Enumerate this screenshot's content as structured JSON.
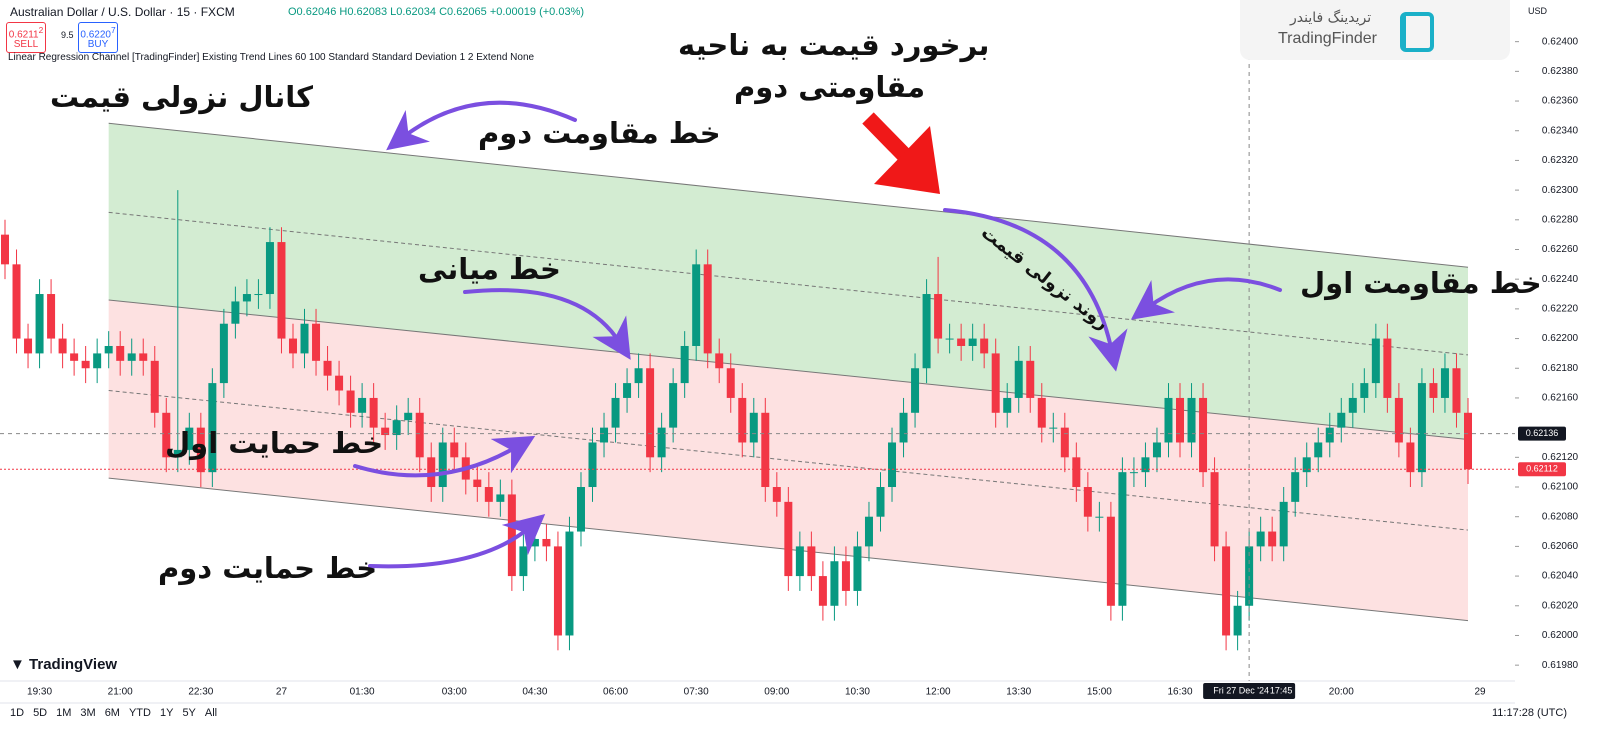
{
  "chart_data": {
    "type": "candlestick",
    "header": {
      "symbol": "Australian Dollar / U.S. Dollar · 15 · FXCM",
      "ohlc": "O0.62046 H0.62083 L0.62034 C0.62065 +0.00019 (+0.03%)",
      "sell_price": "0.6211",
      "sell_sup": "2",
      "sell": "SELL",
      "spread": "9.5",
      "buy_price": "0.6220",
      "buy_sup": "7",
      "buy": "BUY",
      "indicator": "Linear Regression Channel [TradingFinder] Existing Trend Lines 60 100 Standard Standard Deviation 1 2 Extend None"
    },
    "brand": {
      "persian": "تریدینگ فایندر",
      "latin": "TradingFinder"
    },
    "currency": "USD",
    "annotations": [
      "کانال نزولی قیمت",
      "خط مقاومت دوم",
      "برخورد قیمت به ناحیه",
      "مقاومتی دوم",
      "روند نزولی قیمت",
      "خط میانی",
      "خط مقاومت اول",
      "خط حمایت اول",
      "خط حمایت دوم"
    ],
    "footer": {
      "logo": "TradingView",
      "ranges": [
        "1D",
        "5D",
        "1M",
        "3M",
        "6M",
        "YTD",
        "1Y",
        "5Y",
        "All"
      ],
      "clock": "11:17:28 (UTC)"
    },
    "categories": [
      null,
      null,
      null,
      "19:30",
      null,
      null,
      null,
      null,
      null,
      null,
      "21:00",
      null,
      null,
      null,
      null,
      null,
      null,
      "22:30",
      null,
      null,
      null,
      null,
      null,
      null,
      "27",
      null,
      null,
      null,
      null,
      null,
      null,
      "01:30",
      null,
      null,
      null,
      null,
      null,
      null,
      null,
      "03:00",
      null,
      null,
      null,
      null,
      null,
      null,
      "04:30",
      null,
      null,
      null,
      null,
      null,
      null,
      "06:00",
      null,
      null,
      null,
      null,
      null,
      null,
      "07:30",
      null,
      null,
      null,
      null,
      null,
      null,
      "09:00",
      null,
      null,
      null,
      null,
      null,
      null,
      "10:30",
      null,
      null,
      null,
      null,
      null,
      null,
      "12:00",
      null,
      null,
      null,
      null,
      null,
      null,
      "13:30",
      null,
      null,
      null,
      null,
      null,
      null,
      "15:00",
      null,
      null,
      null,
      null,
      null,
      null,
      "16:30",
      null,
      null,
      null,
      null,
      null,
      null,
      null,
      null,
      null,
      null,
      null,
      null,
      null,
      "20:00",
      null,
      null,
      null,
      null,
      null,
      null,
      null,
      null,
      null,
      null,
      null
    ],
    "x_end_label": "29",
    "open": [
      0.6227,
      0.6225,
      0.622,
      0.6219,
      0.6223,
      0.622,
      0.6219,
      0.62185,
      0.6218,
      0.6219,
      0.62195,
      0.62185,
      0.6219,
      0.62185,
      0.6215,
      0.6212,
      0.62125,
      0.6214,
      0.6211,
      0.6217,
      0.6221,
      0.62225,
      0.6223,
      0.6223,
      0.62265,
      0.622,
      0.6219,
      0.6221,
      0.62185,
      0.62175,
      0.62165,
      0.6215,
      0.6216,
      0.6214,
      0.62135,
      0.62145,
      0.6215,
      0.6212,
      0.621,
      0.6213,
      0.6212,
      0.62105,
      0.621,
      0.6209,
      0.62095,
      0.6204,
      0.6206,
      0.62065,
      0.6206,
      0.62,
      0.6207,
      0.621,
      0.6213,
      0.6214,
      0.6216,
      0.6217,
      0.6218,
      0.6212,
      0.6214,
      0.6217,
      0.62195,
      0.6225,
      0.6219,
      0.6218,
      0.6216,
      0.6213,
      0.6215,
      0.621,
      0.6209,
      0.6204,
      0.6206,
      0.6204,
      0.6202,
      0.6205,
      0.6203,
      0.6206,
      0.6208,
      0.621,
      0.6213,
      0.6215,
      0.6218,
      0.6223,
      0.622,
      0.622,
      0.62195,
      0.622,
      0.6219,
      0.6215,
      0.6216,
      0.62185,
      0.6216,
      0.6214,
      0.6214,
      0.6212,
      0.621,
      0.6208,
      0.6208,
      0.6202,
      0.6211,
      0.6211,
      0.6212,
      0.6213,
      0.6216,
      0.6213,
      0.6216,
      0.6211,
      0.6206,
      0.62,
      0.6202,
      0.6206,
      0.6207,
      0.6206,
      0.6209,
      0.6211,
      0.6212,
      0.6213,
      0.6214,
      0.6215,
      0.6216,
      0.6217,
      0.622,
      0.6216,
      0.6213,
      0.6211,
      0.6217,
      0.6216,
      0.6218,
      0.6215
    ],
    "high": [
      0.6228,
      0.6226,
      0.6221,
      0.6224,
      0.6224,
      0.6221,
      0.622,
      0.62195,
      0.622,
      0.62205,
      0.62205,
      0.622,
      0.622,
      0.62195,
      0.6216,
      0.623,
      0.6215,
      0.6215,
      0.6218,
      0.6222,
      0.62235,
      0.6224,
      0.6224,
      0.62275,
      0.62275,
      0.6221,
      0.6222,
      0.6222,
      0.62195,
      0.62185,
      0.62175,
      0.6217,
      0.6217,
      0.6215,
      0.62155,
      0.6216,
      0.6216,
      0.6213,
      0.6214,
      0.6214,
      0.6213,
      0.62115,
      0.6211,
      0.62105,
      0.62105,
      0.6207,
      0.62075,
      0.62075,
      0.6207,
      0.6208,
      0.6211,
      0.6214,
      0.6215,
      0.6217,
      0.6218,
      0.6219,
      0.6219,
      0.6215,
      0.6218,
      0.62205,
      0.6226,
      0.6226,
      0.622,
      0.6219,
      0.6217,
      0.6216,
      0.6216,
      0.6211,
      0.621,
      0.6207,
      0.6207,
      0.6205,
      0.6206,
      0.6206,
      0.6207,
      0.6209,
      0.6211,
      0.6214,
      0.6216,
      0.6219,
      0.6224,
      0.62255,
      0.6221,
      0.6221,
      0.6221,
      0.6221,
      0.622,
      0.6217,
      0.62195,
      0.62195,
      0.6217,
      0.6215,
      0.6215,
      0.6213,
      0.6211,
      0.6209,
      0.6209,
      0.6212,
      0.6212,
      0.6213,
      0.6214,
      0.6217,
      0.6217,
      0.6217,
      0.6217,
      0.6212,
      0.6207,
      0.6203,
      0.6207,
      0.6208,
      0.6208,
      0.621,
      0.6212,
      0.6213,
      0.6214,
      0.6215,
      0.6216,
      0.6217,
      0.6218,
      0.6221,
      0.6221,
      0.6217,
      0.6214,
      0.6218,
      0.6218,
      0.6219,
      0.6219,
      0.6216
    ],
    "low": [
      0.6224,
      0.6219,
      0.6218,
      0.6218,
      0.6219,
      0.6218,
      0.62175,
      0.6217,
      0.6217,
      0.6218,
      0.62175,
      0.62175,
      0.62175,
      0.6214,
      0.6211,
      0.6211,
      0.62115,
      0.621,
      0.621,
      0.6216,
      0.622,
      0.62215,
      0.6222,
      0.6222,
      0.6219,
      0.6218,
      0.6218,
      0.62175,
      0.62165,
      0.62155,
      0.6214,
      0.6214,
      0.6213,
      0.62125,
      0.62125,
      0.62135,
      0.6211,
      0.6209,
      0.6209,
      0.6211,
      0.62095,
      0.6209,
      0.6208,
      0.6208,
      0.6203,
      0.6203,
      0.6205,
      0.6205,
      0.6199,
      0.6199,
      0.6206,
      0.6209,
      0.6212,
      0.6213,
      0.6215,
      0.6216,
      0.6211,
      0.6211,
      0.6213,
      0.6216,
      0.62185,
      0.6218,
      0.6217,
      0.6215,
      0.6212,
      0.6212,
      0.6209,
      0.6208,
      0.6203,
      0.6203,
      0.6203,
      0.6201,
      0.6201,
      0.6202,
      0.6202,
      0.6205,
      0.6207,
      0.6209,
      0.6212,
      0.6214,
      0.6217,
      0.6219,
      0.6219,
      0.62185,
      0.62185,
      0.6218,
      0.6214,
      0.6214,
      0.6215,
      0.6215,
      0.6213,
      0.6213,
      0.6211,
      0.6209,
      0.6207,
      0.6207,
      0.6201,
      0.6201,
      0.621,
      0.621,
      0.6211,
      0.6212,
      0.6212,
      0.6212,
      0.621,
      0.6205,
      0.6199,
      0.6199,
      0.6201,
      0.6205,
      0.6205,
      0.6205,
      0.6208,
      0.621,
      0.6211,
      0.6212,
      0.6213,
      0.6214,
      0.6215,
      0.6216,
      0.6215,
      0.6212,
      0.621,
      0.621,
      0.6215,
      0.6215,
      0.6214,
      0.62102
    ],
    "close": [
      0.6225,
      0.622,
      0.6219,
      0.6223,
      0.622,
      0.6219,
      0.62185,
      0.6218,
      0.6219,
      0.62195,
      0.62185,
      0.6219,
      0.62185,
      0.6215,
      0.6212,
      0.62125,
      0.6214,
      0.6211,
      0.6217,
      0.6221,
      0.62225,
      0.6223,
      0.6223,
      0.62265,
      0.622,
      0.6219,
      0.6221,
      0.62185,
      0.62175,
      0.62165,
      0.6215,
      0.6216,
      0.6214,
      0.62135,
      0.62145,
      0.6215,
      0.6212,
      0.621,
      0.6213,
      0.6212,
      0.62105,
      0.621,
      0.6209,
      0.62095,
      0.6204,
      0.6206,
      0.62065,
      0.6206,
      0.62,
      0.6207,
      0.621,
      0.6213,
      0.6214,
      0.6216,
      0.6217,
      0.6218,
      0.6212,
      0.6214,
      0.6217,
      0.62195,
      0.6225,
      0.6219,
      0.6218,
      0.6216,
      0.6213,
      0.6215,
      0.621,
      0.6209,
      0.6204,
      0.6206,
      0.6204,
      0.6202,
      0.6205,
      0.6203,
      0.6206,
      0.6208,
      0.621,
      0.6213,
      0.6215,
      0.6218,
      0.6223,
      0.622,
      0.622,
      0.62195,
      0.622,
      0.6219,
      0.6215,
      0.6216,
      0.62185,
      0.6216,
      0.6214,
      0.6214,
      0.6212,
      0.621,
      0.6208,
      0.6208,
      0.6202,
      0.6211,
      0.6211,
      0.6212,
      0.6213,
      0.6216,
      0.6213,
      0.6216,
      0.6211,
      0.6206,
      0.62,
      0.6202,
      0.6206,
      0.6207,
      0.6206,
      0.6209,
      0.6211,
      0.6212,
      0.6213,
      0.6214,
      0.6215,
      0.6216,
      0.6217,
      0.622,
      0.6216,
      0.6213,
      0.6211,
      0.6217,
      0.6216,
      0.6218,
      0.6215,
      0.62112
    ],
    "up_color": "#089981",
    "down_color": "#f23645",
    "channel": {
      "start": 9,
      "end": 127,
      "lines": [
        [
          0.62345,
          0.62248
        ],
        [
          0.62285,
          0.62189
        ],
        [
          0.62226,
          0.62132
        ],
        [
          0.62165,
          0.62071
        ],
        [
          0.62106,
          0.6201
        ]
      ],
      "styles": [
        "solid",
        "dashed",
        "solid",
        "dashed",
        "solid"
      ],
      "fills": [
        "#d3ecd2",
        "#fde1e1"
      ]
    },
    "current_price": 0.62112,
    "crosshair": {
      "index": 108,
      "price": 0.62136,
      "date": "Fri 27 Dec '24",
      "time": "17:45"
    },
    "ylim": [
      0.6197,
      0.62422
    ],
    "yticks": [
      {
        "value": 0.624,
        "label": "0.62400"
      },
      {
        "value": 0.6238,
        "label": "0.62380"
      },
      {
        "value": 0.6236,
        "label": "0.62360"
      },
      {
        "value": 0.6234,
        "label": "0.62340"
      },
      {
        "value": 0.6232,
        "label": "0.62320"
      },
      {
        "value": 0.623,
        "label": "0.62300"
      },
      {
        "value": 0.6228,
        "label": "0.62280"
      },
      {
        "value": 0.6226,
        "label": "0.62260"
      },
      {
        "value": 0.6224,
        "label": "0.62240"
      },
      {
        "value": 0.6222,
        "label": "0.62220"
      },
      {
        "value": 0.622,
        "label": "0.62200"
      },
      {
        "value": 0.6218,
        "label": "0.62180"
      },
      {
        "value": 0.6216,
        "label": "0.62160"
      },
      {
        "value": 0.6212,
        "label": "0.62120"
      },
      {
        "value": 0.621,
        "label": "0.62100"
      },
      {
        "value": 0.6208,
        "label": "0.62080"
      },
      {
        "value": 0.6206,
        "label": "0.62060"
      },
      {
        "value": 0.6204,
        "label": "0.62040"
      },
      {
        "value": 0.6202,
        "label": "0.62020"
      },
      {
        "value": 0.62,
        "label": "0.62000"
      },
      {
        "value": 0.6198,
        "label": "0.61980"
      }
    ]
  }
}
